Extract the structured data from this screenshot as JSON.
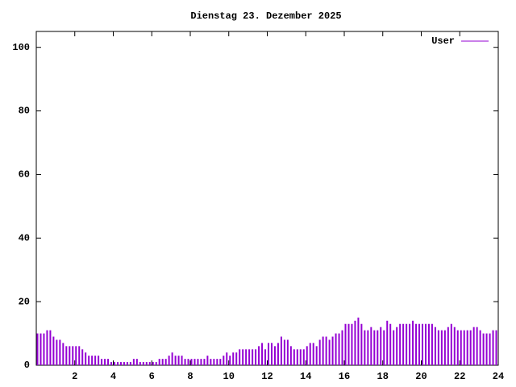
{
  "chart_data": {
    "type": "impulse",
    "title": "Dienstag 23. Dezember 2025",
    "legend": "top-right",
    "series": [
      {
        "name": "User",
        "color": "#9400d3",
        "x": [
          0,
          0.167,
          0.333,
          0.5,
          0.667,
          0.833,
          1,
          1.167,
          1.333,
          1.5,
          1.667,
          1.833,
          2,
          2.167,
          2.333,
          2.5,
          2.667,
          2.833,
          3,
          3.167,
          3.333,
          3.5,
          3.667,
          3.833,
          4,
          4.167,
          4.333,
          4.5,
          4.667,
          4.833,
          5,
          5.167,
          5.333,
          5.5,
          5.667,
          5.833,
          6,
          6.167,
          6.333,
          6.5,
          6.667,
          6.833,
          7,
          7.167,
          7.333,
          7.5,
          7.667,
          7.833,
          8,
          8.167,
          8.333,
          8.5,
          8.667,
          8.833,
          9,
          9.167,
          9.333,
          9.5,
          9.667,
          9.833,
          10,
          10.167,
          10.333,
          10.5,
          10.667,
          10.833,
          11,
          11.167,
          11.333,
          11.5,
          11.667,
          11.833,
          12,
          12.167,
          12.333,
          12.5,
          12.667,
          12.833,
          13,
          13.167,
          13.333,
          13.5,
          13.667,
          13.833,
          14,
          14.167,
          14.333,
          14.5,
          14.667,
          14.833,
          15,
          15.167,
          15.333,
          15.5,
          15.667,
          15.833,
          16,
          16.167,
          16.333,
          16.5,
          16.667,
          16.833,
          17,
          17.167,
          17.333,
          17.5,
          17.667,
          17.833,
          18,
          18.167,
          18.333,
          18.5,
          18.667,
          18.833,
          19,
          19.167,
          19.333,
          19.5,
          19.667,
          19.833,
          20,
          20.167,
          20.333,
          20.5,
          20.667,
          20.833,
          21,
          21.167,
          21.333,
          21.5,
          21.667,
          21.833,
          22,
          22.167,
          22.333,
          22.5,
          22.667,
          22.833,
          23,
          23.167,
          23.333,
          23.5,
          23.667,
          23.833
        ],
        "values": [
          10,
          10,
          10,
          11,
          11,
          9,
          8,
          8,
          7,
          6,
          6,
          6,
          6,
          6,
          5,
          4,
          3,
          3,
          3,
          3,
          2,
          2,
          2,
          1,
          1,
          1,
          1,
          1,
          1,
          1,
          2,
          2,
          1,
          1,
          1,
          1,
          1,
          1,
          2,
          2,
          2,
          3,
          4,
          3,
          3,
          3,
          2,
          2,
          2,
          2,
          2,
          2,
          2,
          3,
          2,
          2,
          2,
          2,
          3,
          4,
          3,
          4,
          4,
          5,
          5,
          5,
          5,
          5,
          5,
          6,
          7,
          5,
          7,
          7,
          6,
          7,
          9,
          8,
          8,
          6,
          5,
          5,
          5,
          5,
          6,
          7,
          7,
          6,
          8,
          9,
          9,
          8,
          9,
          10,
          10,
          11,
          13,
          13,
          13,
          14,
          15,
          13,
          11,
          11,
          12,
          11,
          11,
          12,
          11,
          14,
          13,
          11,
          12,
          13,
          13,
          13,
          13,
          14,
          13,
          13,
          13,
          13,
          13,
          13,
          12,
          11,
          11,
          11,
          12,
          13,
          12,
          11,
          11,
          11,
          11,
          11,
          12,
          12,
          11,
          10,
          10,
          10,
          11,
          11
        ]
      }
    ],
    "xlim": [
      0,
      24
    ],
    "xticks": [
      2,
      4,
      6,
      8,
      10,
      12,
      14,
      16,
      18,
      20,
      22,
      24
    ],
    "ylim": [
      0,
      105
    ],
    "yticks": [
      0,
      20,
      40,
      60,
      80,
      100
    ]
  }
}
